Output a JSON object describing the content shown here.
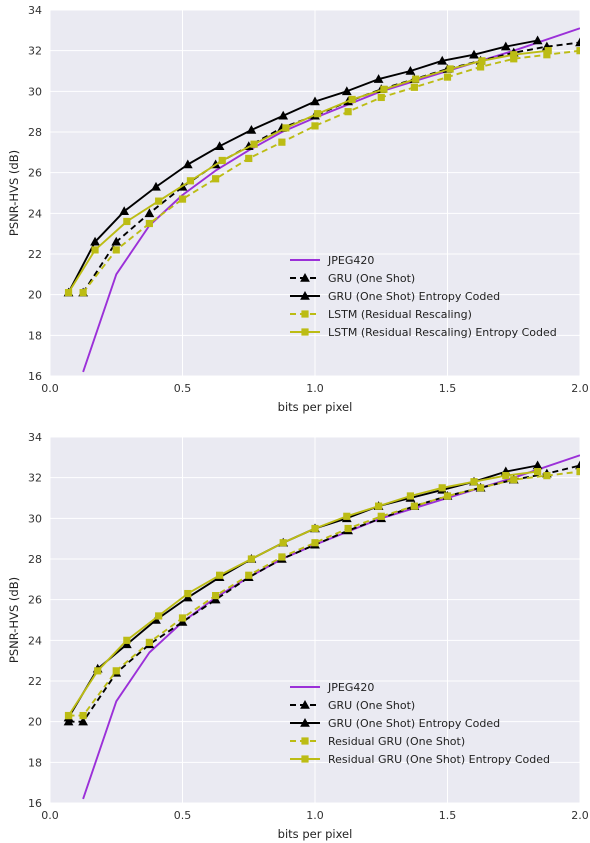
{
  "colors": {
    "background": "#eaeaf2",
    "grid": "#ffffff",
    "jpeg": "#9b30d8",
    "gru": "#000000",
    "yellow": "#bcbc14"
  },
  "chart_data": [
    {
      "type": "line",
      "xlabel": "bits per pixel",
      "ylabel": "PSNR-HVS (dB)",
      "xlim": [
        0.0,
        2.0
      ],
      "ylim": [
        16,
        34
      ],
      "xticks": [
        "0.0",
        "0.5",
        "1.0",
        "1.5",
        "2.0"
      ],
      "yticks": [
        "16",
        "18",
        "20",
        "22",
        "24",
        "26",
        "28",
        "30",
        "32",
        "34"
      ],
      "grid": true,
      "legend_position": "lower-right",
      "series": [
        {
          "name": "JPEG420",
          "color": "#9b30d8",
          "dashed": false,
          "marker": "none",
          "x": [
            0.125,
            0.25,
            0.375,
            0.5,
            0.625,
            0.75,
            0.875,
            1.0,
            1.25,
            1.5,
            1.75,
            2.0
          ],
          "y": [
            16.2,
            21.0,
            23.4,
            24.9,
            26.1,
            27.1,
            28.0,
            28.7,
            30.0,
            31.0,
            32.0,
            33.1
          ]
        },
        {
          "name": "GRU (One Shot)",
          "color": "#000000",
          "dashed": true,
          "marker": "triangle",
          "x": [
            0.125,
            0.25,
            0.375,
            0.5,
            0.625,
            0.75,
            0.875,
            1.0,
            1.125,
            1.25,
            1.375,
            1.5,
            1.625,
            1.75,
            1.875,
            2.0
          ],
          "y": [
            20.1,
            22.6,
            24.0,
            25.3,
            26.4,
            27.3,
            28.2,
            28.8,
            29.5,
            30.1,
            30.6,
            31.1,
            31.5,
            31.9,
            32.2,
            32.4
          ]
        },
        {
          "name": "GRU (One Shot) Entropy Coded",
          "color": "#000000",
          "dashed": false,
          "marker": "triangle",
          "x": [
            0.07,
            0.17,
            0.28,
            0.4,
            0.52,
            0.64,
            0.76,
            0.88,
            1.0,
            1.12,
            1.24,
            1.36,
            1.48,
            1.6,
            1.72,
            1.84
          ],
          "y": [
            20.1,
            22.6,
            24.1,
            25.3,
            26.4,
            27.3,
            28.1,
            28.8,
            29.5,
            30.0,
            30.6,
            31.0,
            31.5,
            31.8,
            32.2,
            32.5
          ]
        },
        {
          "name": "LSTM (Residual Rescaling)",
          "color": "#bcbc14",
          "dashed": true,
          "marker": "square",
          "x": [
            0.125,
            0.25,
            0.375,
            0.5,
            0.625,
            0.75,
            0.875,
            1.0,
            1.125,
            1.25,
            1.375,
            1.5,
            1.625,
            1.75,
            1.875,
            2.0
          ],
          "y": [
            20.1,
            22.2,
            23.5,
            24.7,
            25.7,
            26.7,
            27.5,
            28.3,
            29.0,
            29.7,
            30.2,
            30.7,
            31.2,
            31.6,
            31.8,
            32.0
          ]
        },
        {
          "name": "LSTM (Residual Rescaling) Entropy Coded",
          "color": "#bcbc14",
          "dashed": false,
          "marker": "square",
          "x": [
            0.07,
            0.17,
            0.29,
            0.41,
            0.53,
            0.65,
            0.77,
            0.89,
            1.01,
            1.14,
            1.26,
            1.38,
            1.51,
            1.63,
            1.75,
            1.88
          ],
          "y": [
            20.1,
            22.2,
            23.6,
            24.6,
            25.6,
            26.6,
            27.4,
            28.2,
            28.9,
            29.6,
            30.1,
            30.6,
            31.1,
            31.5,
            31.8,
            32.0
          ]
        }
      ]
    },
    {
      "type": "line",
      "xlabel": "bits per pixel",
      "ylabel": "PSNR-HVS (dB)",
      "xlim": [
        0.0,
        2.0
      ],
      "ylim": [
        16,
        34
      ],
      "xticks": [
        "0.0",
        "0.5",
        "1.0",
        "1.5",
        "2.0"
      ],
      "yticks": [
        "16",
        "18",
        "20",
        "22",
        "24",
        "26",
        "28",
        "30",
        "32",
        "34"
      ],
      "grid": true,
      "legend_position": "lower-right",
      "series": [
        {
          "name": "JPEG420",
          "color": "#9b30d8",
          "dashed": false,
          "marker": "none",
          "x": [
            0.125,
            0.25,
            0.375,
            0.5,
            0.625,
            0.75,
            0.875,
            1.0,
            1.25,
            1.5,
            1.75,
            2.0
          ],
          "y": [
            16.2,
            21.0,
            23.4,
            24.9,
            26.1,
            27.1,
            28.0,
            28.7,
            30.0,
            31.0,
            32.0,
            33.1
          ]
        },
        {
          "name": "GRU (One Shot)",
          "color": "#000000",
          "dashed": true,
          "marker": "triangle",
          "x": [
            0.07,
            0.125,
            0.25,
            0.375,
            0.5,
            0.625,
            0.75,
            0.875,
            1.0,
            1.125,
            1.25,
            1.375,
            1.5,
            1.625,
            1.75,
            1.875,
            2.0
          ],
          "y": [
            20.0,
            20.0,
            22.4,
            23.8,
            24.9,
            26.0,
            27.1,
            28.0,
            28.7,
            29.4,
            30.0,
            30.6,
            31.1,
            31.5,
            31.9,
            32.2,
            32.6
          ]
        },
        {
          "name": "GRU (One Shot) Entropy Coded",
          "color": "#000000",
          "dashed": false,
          "marker": "triangle",
          "x": [
            0.07,
            0.18,
            0.29,
            0.4,
            0.52,
            0.64,
            0.76,
            0.88,
            1.0,
            1.12,
            1.24,
            1.36,
            1.48,
            1.6,
            1.72,
            1.84
          ],
          "y": [
            20.2,
            22.6,
            23.8,
            25.0,
            26.1,
            27.1,
            28.0,
            28.8,
            29.5,
            30.0,
            30.6,
            31.0,
            31.4,
            31.8,
            32.3,
            32.6
          ]
        },
        {
          "name": "Residual GRU (One Shot)",
          "color": "#bcbc14",
          "dashed": true,
          "marker": "square",
          "x": [
            0.07,
            0.125,
            0.25,
            0.375,
            0.5,
            0.625,
            0.75,
            0.875,
            1.0,
            1.125,
            1.25,
            1.375,
            1.5,
            1.625,
            1.75,
            1.875,
            2.0
          ],
          "y": [
            20.3,
            20.3,
            22.5,
            23.9,
            25.1,
            26.2,
            27.2,
            28.1,
            28.8,
            29.5,
            30.1,
            30.6,
            31.1,
            31.5,
            31.9,
            32.1,
            32.3
          ]
        },
        {
          "name": "Residual GRU (One Shot) Entropy Coded",
          "color": "#bcbc14",
          "dashed": false,
          "marker": "square",
          "x": [
            0.07,
            0.18,
            0.29,
            0.41,
            0.52,
            0.64,
            0.76,
            0.88,
            1.0,
            1.12,
            1.24,
            1.36,
            1.48,
            1.6,
            1.72,
            1.84
          ],
          "y": [
            20.3,
            22.5,
            24.0,
            25.2,
            26.3,
            27.2,
            28.0,
            28.8,
            29.5,
            30.1,
            30.6,
            31.1,
            31.5,
            31.8,
            32.1,
            32.3
          ]
        }
      ]
    }
  ]
}
